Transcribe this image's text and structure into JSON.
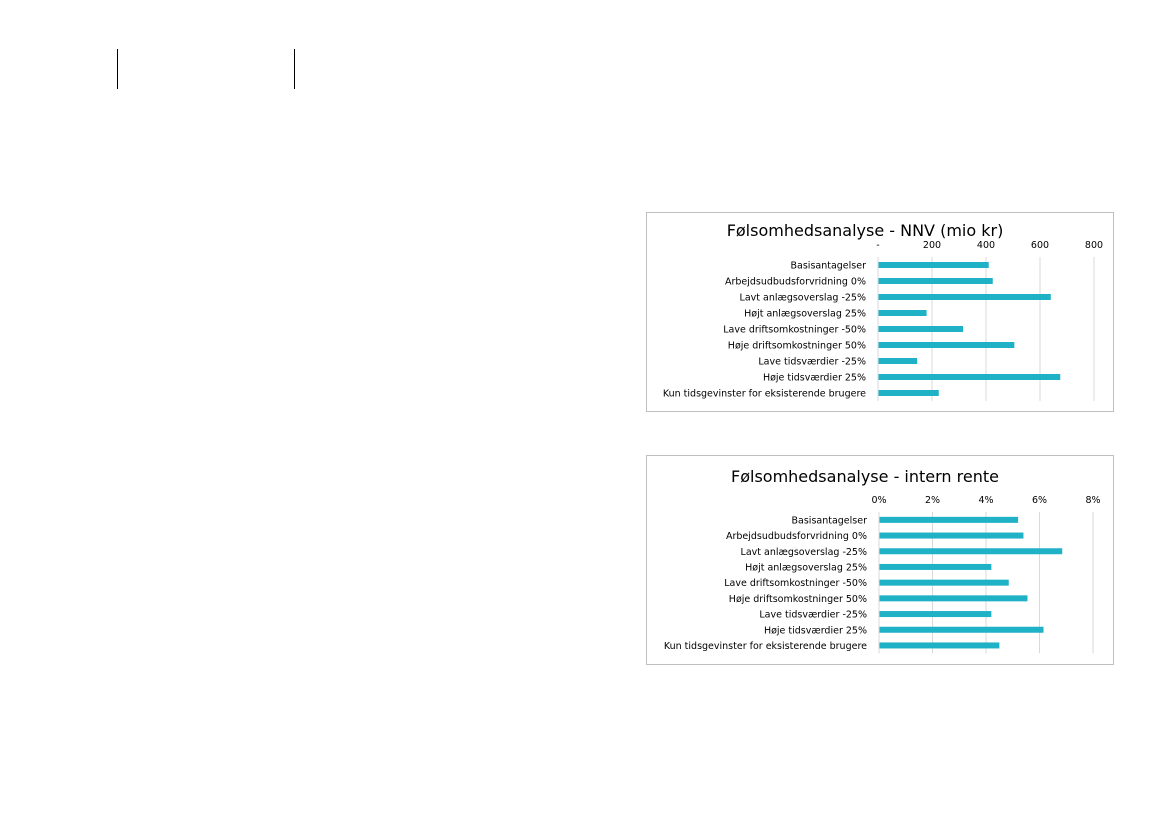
{
  "chart_data": [
    {
      "type": "bar",
      "orientation": "horizontal",
      "title": "Følsomhedsanalyse - NNV (mio kr)",
      "categories": [
        "Basisantagelser",
        "Arbejdsudbudsforvridning 0%",
        "Lavt anlægsoverslag -25%",
        "Højt anlægsoverslag 25%",
        "Lave driftsomkostninger -50%",
        "Høje driftsomkostninger 50%",
        "Lave tidsværdier -25%",
        "Høje tidsværdier 25%",
        "Kun tidsgevinster for eksisterende brugere"
      ],
      "values": [
        410,
        425,
        640,
        180,
        315,
        505,
        145,
        675,
        225
      ],
      "xlim": [
        0,
        800
      ],
      "ticks": [
        0,
        200,
        400,
        600,
        800
      ],
      "tick_labels": [
        "-",
        "200",
        "400",
        "600",
        "800"
      ],
      "axis_position": "top",
      "grid": true,
      "color": "#1fb1c6"
    },
    {
      "type": "bar",
      "orientation": "horizontal",
      "title": "Følsomhedsanalyse - intern rente",
      "categories": [
        "Basisantagelser",
        "Arbejdsudbudsforvridning 0%",
        "Lavt anlægsoverslag -25%",
        "Højt anlægsoverslag 25%",
        "Lave driftsomkostninger -50%",
        "Høje driftsomkostninger 50%",
        "Lave tidsværdier -25%",
        "Høje tidsværdier 25%",
        "Kun tidsgevinster for eksisterende brugere"
      ],
      "values": [
        5.2,
        5.4,
        6.85,
        4.2,
        4.85,
        5.55,
        4.2,
        6.15,
        4.5
      ],
      "xlim": [
        0,
        8
      ],
      "ticks": [
        0,
        2,
        4,
        6,
        8
      ],
      "tick_labels": [
        "0%",
        "2%",
        "4%",
        "6%",
        "8%"
      ],
      "axis_position": "top",
      "grid": true,
      "color": "#1fb1c6"
    }
  ]
}
